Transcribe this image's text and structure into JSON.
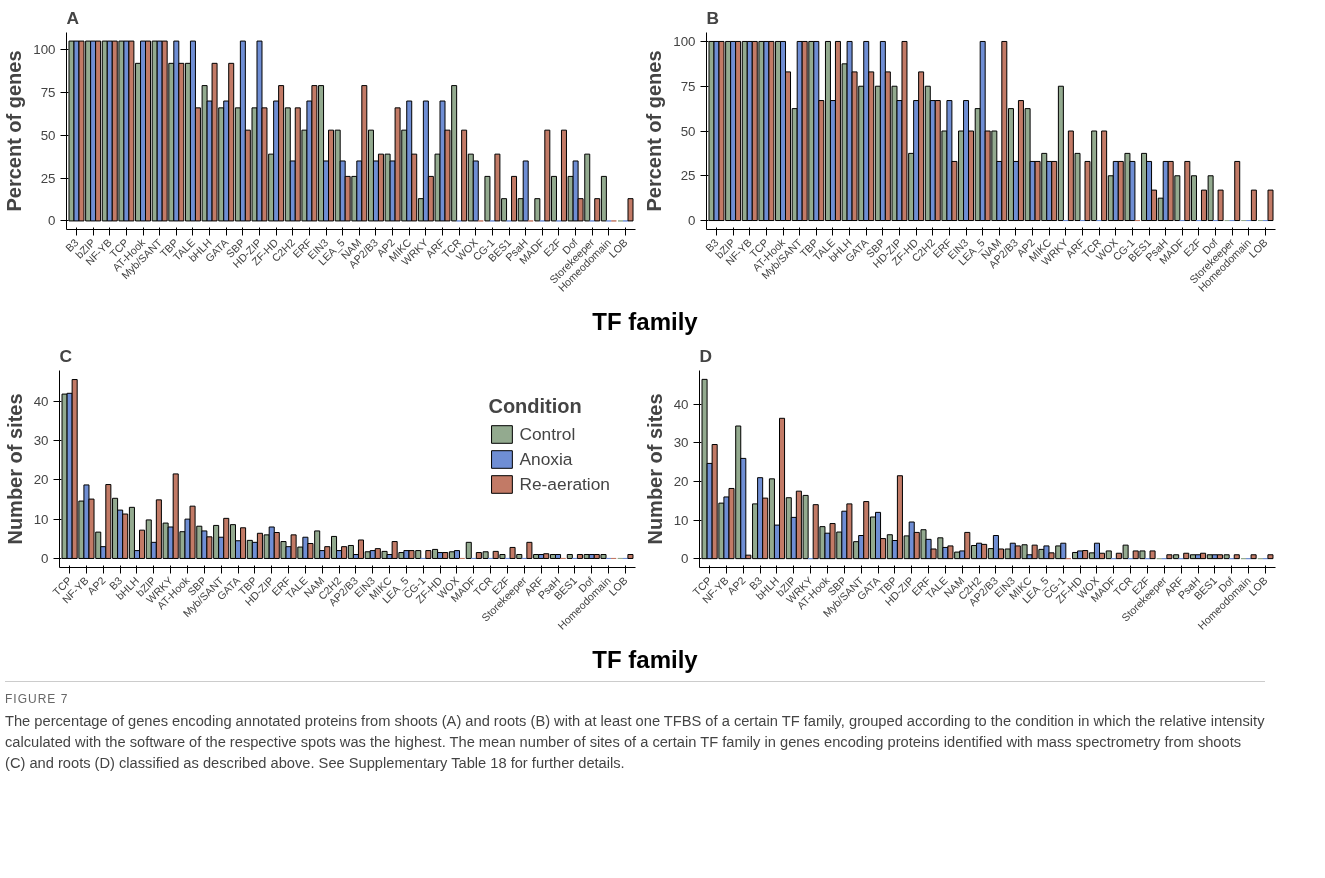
{
  "chart_data": [
    {
      "type": "bar",
      "title": "A",
      "ylabel": "Percent of genes",
      "xlabel": "TF family",
      "categories": [
        "B3",
        "bZIP",
        "NF-YB",
        "TCP",
        "AT-Hook",
        "Myb/SANT",
        "TBP",
        "TALE",
        "bHLH",
        "GATA",
        "SBP",
        "HD-ZIP",
        "ZF-HD",
        "C2H2",
        "ERF",
        "EIN3",
        "LEA_5",
        "NAM",
        "AP2/B3",
        "AP2",
        "MIKC",
        "WRKY",
        "ARF",
        "TCR",
        "WOX",
        "CG-1",
        "BES1",
        "PsaH",
        "MADF",
        "E2F",
        "Dof",
        "Storekeeper",
        "Homeodomain",
        "LOB"
      ],
      "ylim": [
        -5,
        110
      ],
      "yticks": [
        0,
        25,
        50,
        75,
        100
      ],
      "series": [
        {
          "color": "#93aa8f",
          "values": [
            105,
            105,
            105,
            105,
            92,
            105,
            92,
            92,
            79,
            66,
            66,
            66,
            39,
            66,
            53,
            79,
            53,
            26,
            53,
            39,
            53,
            13,
            39,
            79,
            39,
            26,
            13,
            13,
            13,
            26,
            26,
            39,
            26,
            0
          ]
        },
        {
          "color": "#6f8ed4",
          "values": [
            105,
            105,
            105,
            105,
            105,
            105,
            105,
            105,
            70,
            70,
            105,
            105,
            70,
            35,
            70,
            35,
            35,
            35,
            35,
            35,
            70,
            70,
            70,
            0,
            35,
            0,
            0,
            35,
            0,
            0,
            35,
            0,
            0,
            0
          ]
        },
        {
          "color": "#c27a66",
          "values": [
            105,
            105,
            105,
            105,
            105,
            105,
            92,
            66,
            92,
            92,
            53,
            66,
            79,
            66,
            79,
            53,
            26,
            79,
            39,
            66,
            39,
            26,
            53,
            53,
            0,
            39,
            26,
            0,
            53,
            53,
            13,
            13,
            0,
            13
          ]
        }
      ]
    },
    {
      "type": "bar",
      "title": "B",
      "ylabel": "Percent of genes",
      "categories": [
        "B3",
        "bZIP",
        "NF-YB",
        "TCP",
        "AT-Hook",
        "Myb/SANT",
        "TBP",
        "TALE",
        "bHLH",
        "GATA",
        "SBP",
        "HD-ZIP",
        "ZF-HD",
        "C2H2",
        "ERF",
        "EIN3",
        "LEA_5",
        "NAM",
        "AP2/B3",
        "AP2",
        "MIKC",
        "WRKY",
        "ARF",
        "TCR",
        "WOX",
        "CG-1",
        "BES1",
        "PsaH",
        "MADF",
        "E2F",
        "Dof",
        "Storekeeper",
        "Homeodomain",
        "LOB"
      ],
      "ylim": [
        -5,
        105
      ],
      "yticks": [
        0,
        25,
        50,
        75,
        100
      ],
      "series": [
        {
          "color": "#93aa8f",
          "values": [
            100,
            100,
            100,
            100,
            100,
            62.5,
            100,
            100,
            87.5,
            75,
            75,
            75,
            37.5,
            75,
            50,
            50,
            62.5,
            50,
            62.5,
            62.5,
            37.5,
            75,
            37.5,
            50,
            25,
            37.5,
            37.5,
            12.5,
            25,
            25,
            25,
            0,
            0,
            0
          ]
        },
        {
          "color": "#6f8ed4",
          "values": [
            100,
            100,
            100,
            100,
            100,
            100,
            100,
            67,
            100,
            100,
            100,
            67,
            67,
            67,
            67,
            67,
            100,
            33,
            33,
            33,
            33,
            0,
            0,
            0,
            33,
            33,
            33,
            33,
            0,
            0,
            0,
            0,
            0,
            0
          ]
        },
        {
          "color": "#c27a66",
          "values": [
            100,
            100,
            100,
            100,
            83,
            100,
            67,
            100,
            83,
            83,
            83,
            100,
            83,
            67,
            33,
            50,
            50,
            100,
            67,
            33,
            33,
            50,
            33,
            50,
            33,
            0,
            17,
            33,
            33,
            17,
            17,
            33,
            17,
            17
          ]
        }
      ]
    },
    {
      "type": "bar",
      "title": "C",
      "ylabel": "Number of sites",
      "xlabel": "TF family",
      "legend": "top right",
      "legend_title": "Condition",
      "categories": [
        "TCP",
        "NF-YB",
        "AP2",
        "B3",
        "bHLH",
        "bZIP",
        "WRKY",
        "AT-Hook",
        "SBP",
        "Myb/SANT",
        "GATA",
        "TBP",
        "HD-ZIP",
        "ERF",
        "TALE",
        "NAM",
        "C2H2",
        "AP2/B3",
        "EIN3",
        "MIKC",
        "LEA_5",
        "CG-1",
        "ZF-HD",
        "WOX",
        "MADF",
        "TCR",
        "E2F",
        "Storekeeper",
        "ARF",
        "PsaH",
        "BES1",
        "Dof",
        "Homeodomain",
        "LOB"
      ],
      "ylim": [
        -2.3,
        47.8
      ],
      "yticks": [
        0,
        10,
        20,
        30,
        40
      ],
      "series": [
        {
          "name": "Control",
          "color": "#93aa8f",
          "values": [
            41.8,
            14.6,
            6.7,
            15.3,
            13.0,
            9.8,
            9.0,
            6.8,
            8.2,
            8.4,
            8.6,
            4.6,
            6.0,
            4.3,
            2.9,
            7.0,
            5.6,
            3.3,
            1.7,
            1.8,
            1.5,
            2.0,
            2.3,
            1.7,
            4.1,
            1.7,
            1.0,
            1.0,
            1.0,
            1.0,
            1.0,
            1.0,
            1.0,
            0
          ]
        },
        {
          "name": "Anoxia",
          "color": "#6f8ed4",
          "values": [
            42.0,
            18.7,
            3.0,
            12.3,
            2.0,
            4.1,
            8.0,
            10.0,
            7.0,
            5.4,
            4.5,
            4.1,
            8.0,
            3.0,
            5.4,
            2.0,
            2.0,
            1.0,
            2.0,
            1.0,
            2.0,
            0,
            1.5,
            2.0,
            0,
            0,
            0,
            0,
            1.0,
            1.0,
            0,
            1.0,
            0,
            0
          ]
        },
        {
          "name": "Re-aeration",
          "color": "#c27a66",
          "values": [
            45.5,
            15.1,
            18.8,
            11.3,
            7.2,
            14.9,
            21.5,
            13.3,
            5.5,
            10.2,
            7.8,
            6.4,
            6.6,
            6.0,
            3.8,
            3.0,
            3.0,
            4.7,
            2.5,
            4.3,
            2.0,
            2.0,
            1.5,
            0,
            1.5,
            1.8,
            2.8,
            4.1,
            1.2,
            0,
            1.0,
            1.0,
            0,
            1.0
          ]
        }
      ]
    },
    {
      "type": "bar",
      "title": "D",
      "ylabel": "Number of sites",
      "categories": [
        "TCP",
        "NF-YB",
        "AP2",
        "B3",
        "bHLH",
        "bZIP",
        "WRKY",
        "AT-Hook",
        "SBP",
        "Myb/SANT",
        "GATA",
        "TBP",
        "HD-ZIP",
        "ERF",
        "TALE",
        "NAM",
        "C2H2",
        "AP2/B3",
        "EIN3",
        "MIKC",
        "LEA_5",
        "CG-1",
        "ZF-HD",
        "WOX",
        "MADF",
        "TCR",
        "E2F",
        "Storekeeper",
        "ARF",
        "PsaH",
        "BES1",
        "Dof",
        "Homeodomain",
        "LOB"
      ],
      "ylim": [
        -2.3,
        48.8
      ],
      "yticks": [
        0,
        10,
        20,
        30,
        40
      ],
      "series": [
        {
          "color": "#93aa8f",
          "values": [
            46.5,
            14.4,
            34.4,
            14.2,
            20.7,
            15.8,
            16.4,
            8.3,
            6.9,
            4.4,
            10.8,
            6.2,
            5.9,
            7.5,
            5.4,
            1.7,
            3.4,
            2.6,
            2.5,
            3.6,
            2.4,
            3.3,
            1.6,
            1.5,
            2.0,
            3.5,
            2.0,
            0,
            1.0,
            1.0,
            1.0,
            1.0,
            0,
            0
          ]
        },
        {
          "color": "#6f8ed4",
          "values": [
            24.7,
            16.0,
            26.0,
            21.0,
            8.7,
            10.7,
            0,
            6.6,
            12.3,
            6.0,
            12.0,
            4.7,
            9.5,
            5.0,
            2.9,
            2.0,
            4.0,
            6.0,
            4.0,
            1.0,
            3.3,
            4.0,
            2.0,
            4.0,
            0,
            0,
            0,
            0,
            0,
            1.0,
            1.0,
            0,
            0,
            0
          ]
        },
        {
          "color": "#c27a66",
          "values": [
            29.6,
            18.2,
            0.9,
            15.7,
            36.4,
            17.5,
            14.0,
            9.1,
            14.2,
            14.8,
            5.2,
            21.5,
            6.8,
            2.5,
            3.3,
            6.8,
            3.7,
            2.5,
            3.3,
            3.5,
            1.5,
            0,
            2.1,
            1.4,
            1.4,
            2.0,
            2.0,
            1.0,
            1.4,
            1.4,
            1.0,
            1.0,
            1.0,
            1.0
          ]
        }
      ],
      "annotations": [
        "FIGURE 7",
        "The percentage of genes encoding annotated proteins from shoots (A) and roots (B) with at least one TFBS of a certain TF family, grouped according to the condition in which the relative intensity calculated with the software of the respective spots was the highest. The mean number of sites of a certain TF family in genes encoding proteins identified with mass spectrometry from shoots (C) and roots (D) classified as described above. See Supplementary Table 18 for further details."
      ]
    }
  ]
}
